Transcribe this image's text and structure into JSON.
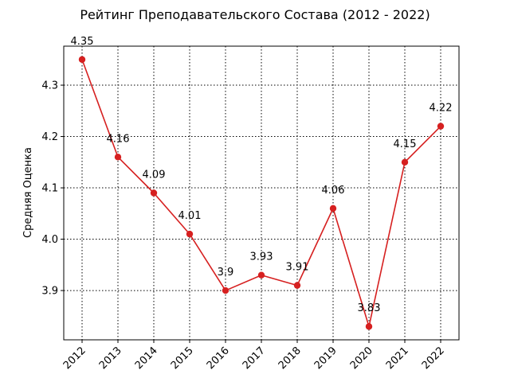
{
  "chart_data": {
    "type": "line",
    "title": "Рейтинг Преподавательского Состава (2012 - 2022)",
    "xlabel": "",
    "ylabel": "Средняя Оценка",
    "categories": [
      "2012",
      "2013",
      "2014",
      "2015",
      "2016",
      "2017",
      "2018",
      "2019",
      "2020",
      "2021",
      "2022"
    ],
    "series": [
      {
        "values": [
          4.35,
          4.16,
          4.09,
          4.01,
          3.9,
          3.93,
          3.91,
          4.06,
          3.83,
          4.15,
          4.22
        ],
        "labels": [
          "4.35",
          "4.16",
          "4.09",
          "4.01",
          "3.9",
          "3.93",
          "3.91",
          "4.06",
          "3.83",
          "4.15",
          "4.22"
        ],
        "color": "#d62020"
      }
    ],
    "yticks": [
      3.9,
      4.0,
      4.1,
      4.2,
      4.3
    ],
    "ytick_labels": [
      "3.9",
      "4.0",
      "4.1",
      "4.2",
      "4.3"
    ],
    "ylim": [
      3.804,
      4.376
    ],
    "grid": true,
    "grid_style": "dotted",
    "xtick_rotation": 45,
    "legend": "none"
  }
}
